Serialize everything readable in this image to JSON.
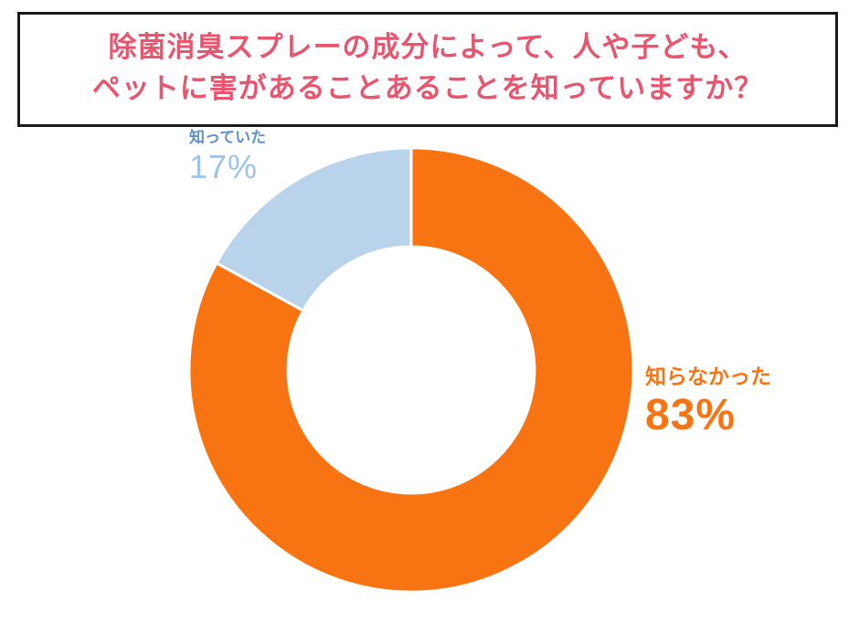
{
  "page": {
    "background": "#ffffff"
  },
  "header": {
    "title_line1": "除菌消臭スプレーの成分によって、人や子ども、",
    "title_line2": "ペットに害があることあることを知っていますか？",
    "title_color": "#E8556F",
    "border_color": "#1a1a1a"
  },
  "chart_data": {
    "type": "pie",
    "donut": true,
    "title": "除菌消臭スプレーの成分によって、人や子ども、ペットに害があることあることを知っていますか？",
    "labels": [
      "知らなかった",
      "知っていた"
    ],
    "values": [
      83,
      17
    ],
    "colors": [
      "#F87413",
      "#B9D3EB"
    ],
    "start_angle_deg": 0,
    "direction": "clockwise",
    "inner_radius_ratio": 0.555,
    "slice_border_color": "#FFFFFF",
    "legend_position": "none"
  },
  "annotations": {
    "knew": {
      "label": "知っていた",
      "value": "17%",
      "label_color": "#5F92C9",
      "value_color": "#9CC3E8"
    },
    "did_not_know": {
      "label": "知らなかった",
      "value": "83%",
      "label_color": "#F87413",
      "value_color": "#F87413"
    }
  }
}
